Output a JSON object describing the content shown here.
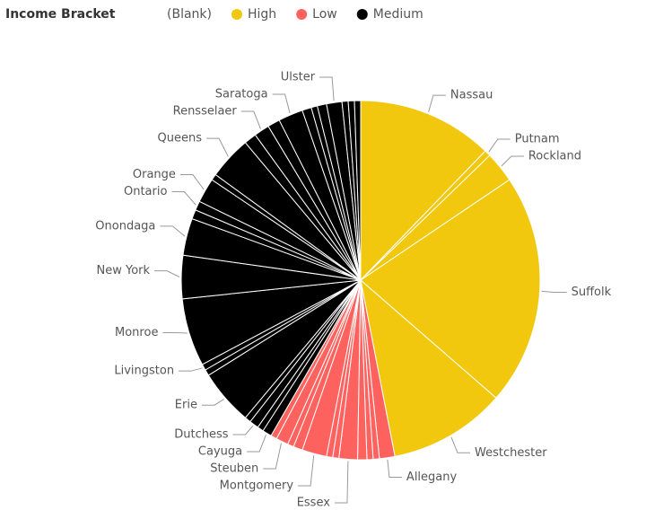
{
  "chart_data": {
    "type": "pie",
    "legend_title": "Income Bracket",
    "legend": [
      {
        "name": "(Blank)",
        "color": null
      },
      {
        "name": "High",
        "color": "#F2C80F"
      },
      {
        "name": "Low",
        "color": "#FD625E"
      },
      {
        "name": "Medium",
        "color": "#000000"
      }
    ],
    "categories": [
      "Nassau",
      "Putnam",
      "Rockland",
      "Suffolk",
      "Westchester",
      "Allegany",
      null,
      null,
      null,
      "Essex",
      null,
      null,
      "Montgomery",
      null,
      null,
      "Steuben",
      null,
      "Cayuga",
      null,
      "Dutchess",
      null,
      "Erie",
      null,
      "Livingston",
      "Monroe",
      "New York",
      "Onondaga",
      null,
      "Ontario",
      "Orange",
      null,
      "Queens",
      null,
      "Rensselaer",
      null,
      "Saratoga",
      null,
      null,
      null,
      "Ulster",
      null,
      null,
      null
    ],
    "groups": [
      "High",
      "High",
      "High",
      "High",
      "High",
      "Low",
      "Low",
      "Low",
      "Low",
      "Low",
      "Low",
      "Low",
      "Low",
      "Low",
      "Low",
      "Low",
      "Low",
      "Medium",
      "Medium",
      "Medium",
      "Medium",
      "Medium",
      "Medium",
      "Medium",
      "Medium",
      "Medium",
      "Medium",
      "Medium",
      "Medium",
      "Medium",
      "Medium",
      "Medium",
      "Medium",
      "Medium",
      "Medium",
      "Medium",
      "Medium",
      "Medium",
      "Medium",
      "Medium",
      "Medium",
      "Medium",
      "Medium"
    ],
    "values": [
      44,
      2,
      10,
      75,
      38,
      5,
      2,
      2,
      3,
      6,
      2,
      2,
      8,
      3,
      2,
      4,
      2,
      3,
      2,
      3,
      2,
      18,
      2,
      2,
      22,
      14,
      12,
      3,
      3,
      8,
      2,
      14,
      4,
      5,
      4,
      8,
      3,
      2,
      3,
      5,
      2,
      2,
      2
    ]
  }
}
